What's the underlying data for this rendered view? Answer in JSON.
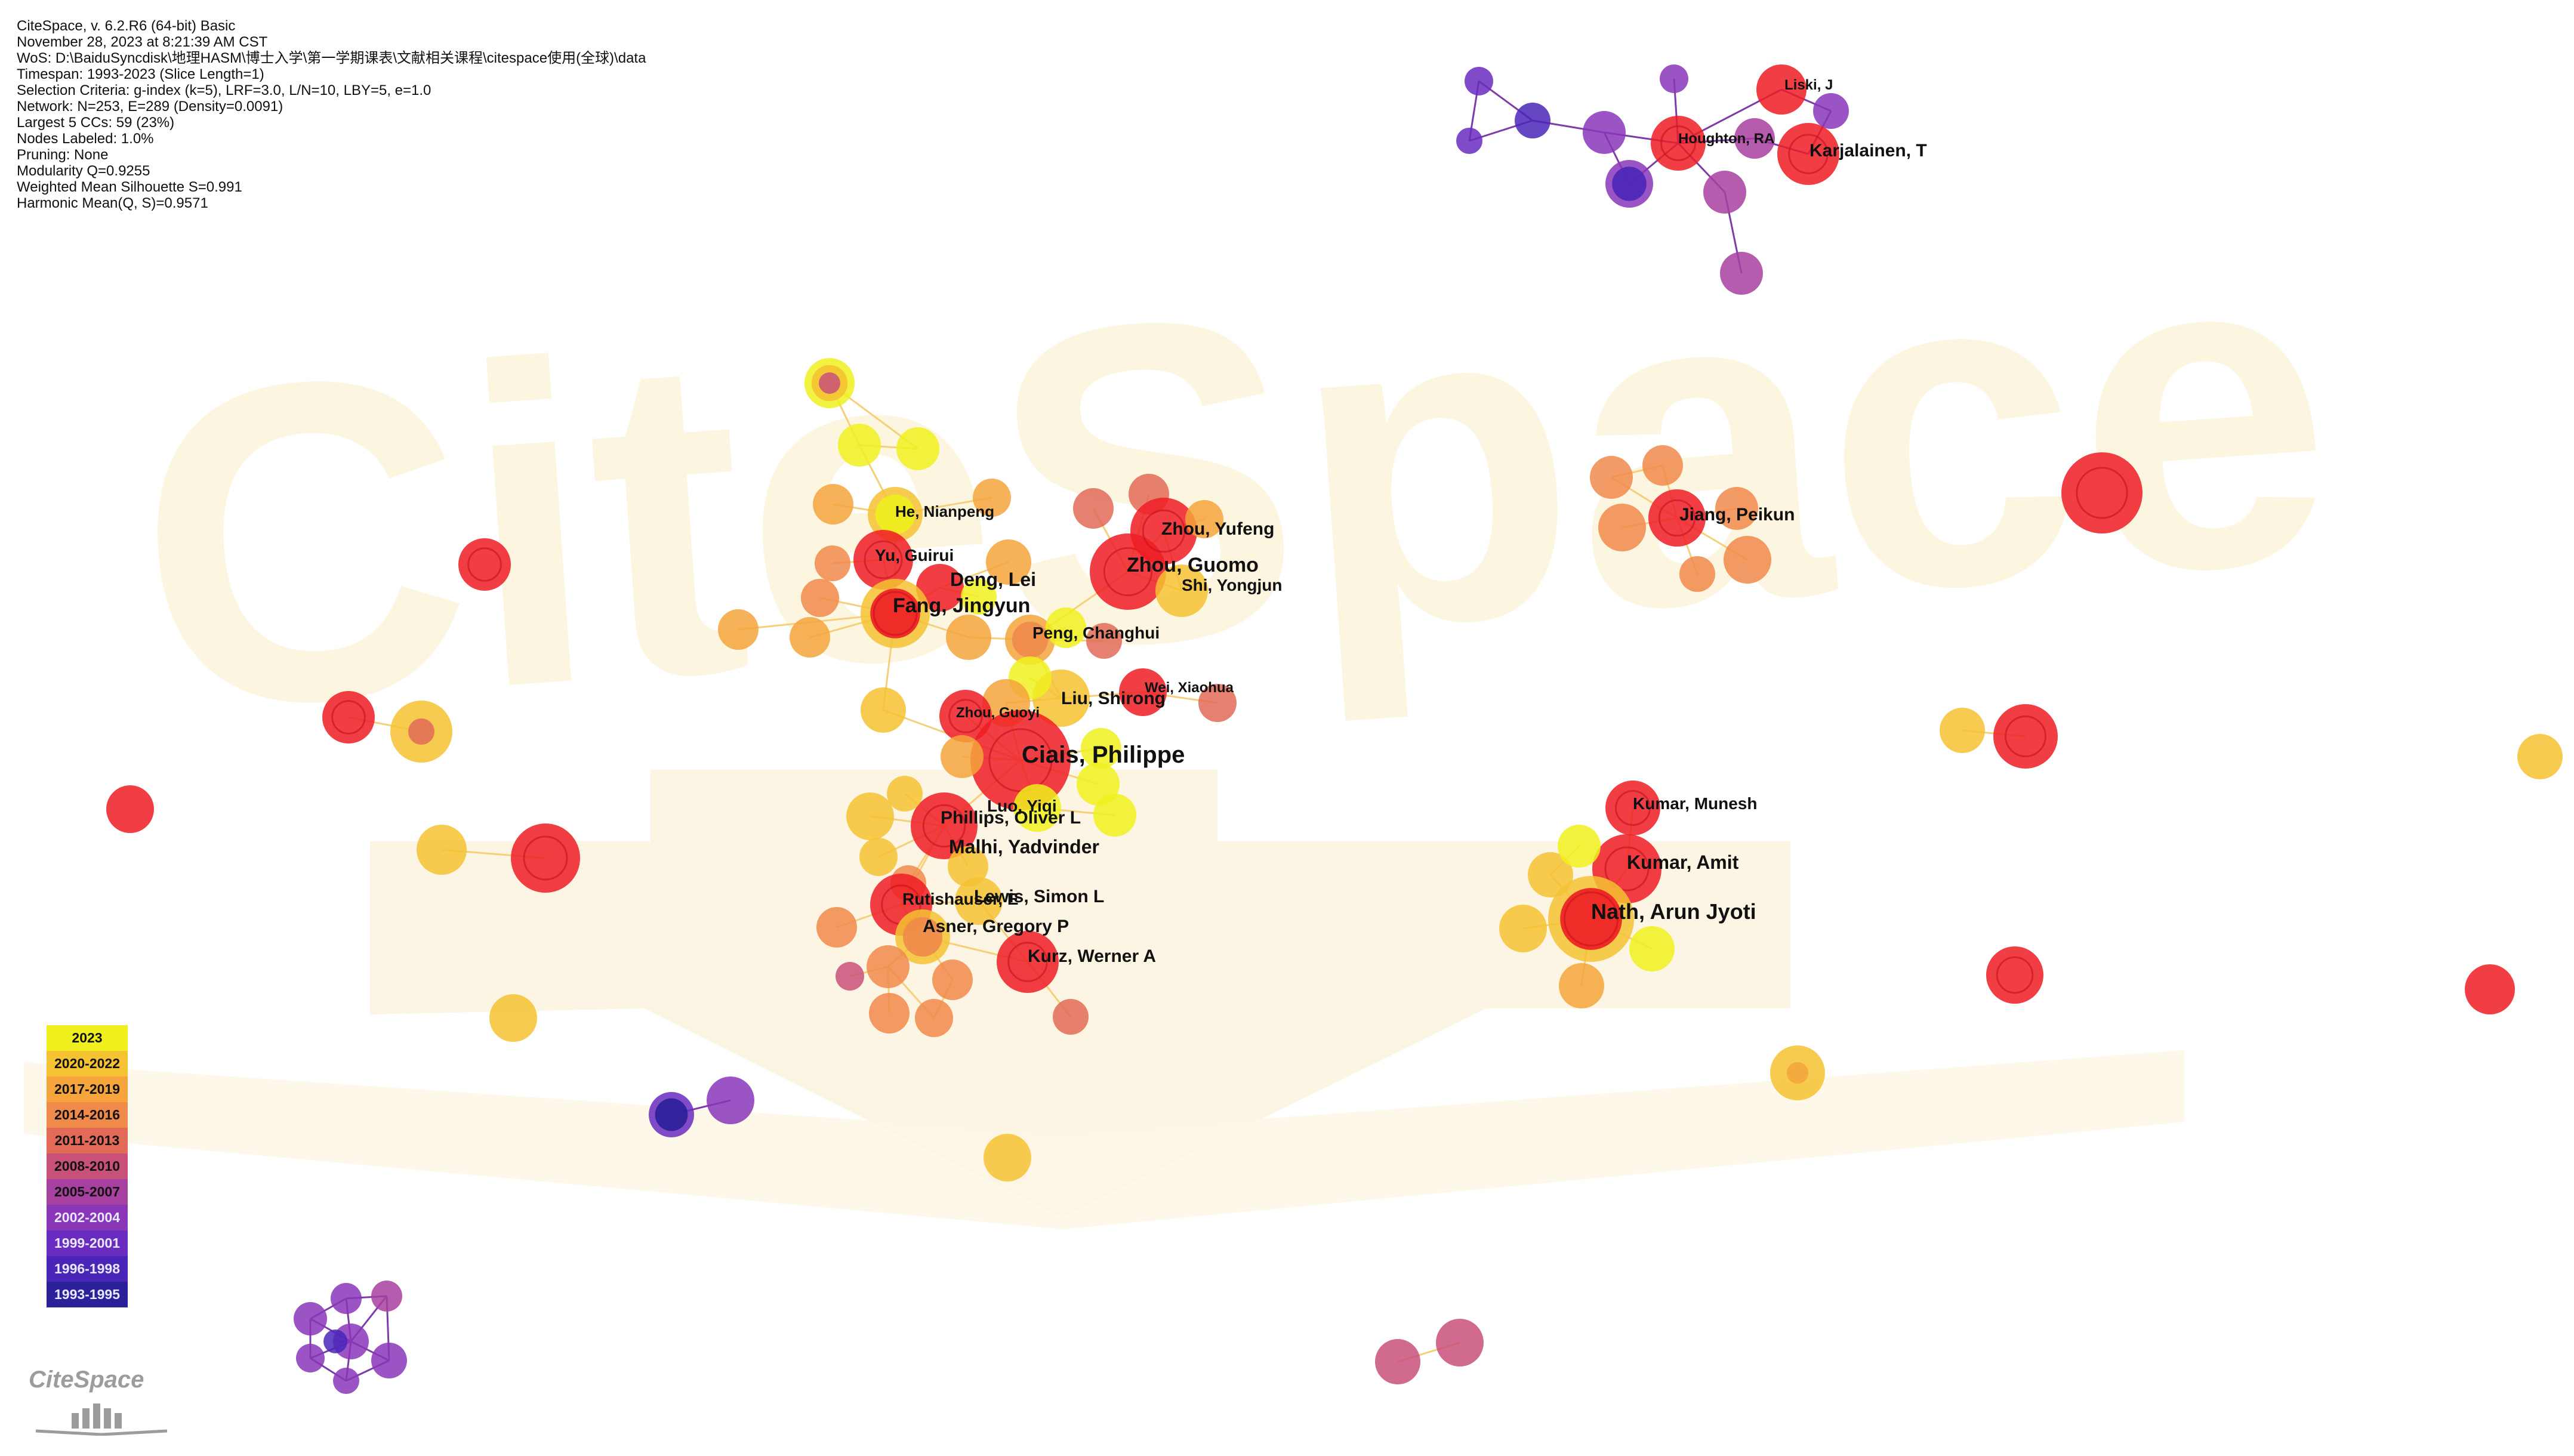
{
  "header": {
    "lines": [
      "CiteSpace, v. 6.2.R6 (64-bit) Basic",
      "November 28, 2023 at 8:21:39 AM CST",
      "WoS: D:\\BaiduSyncdisk\\地理HASM\\博士入学\\第一学期课表\\文献相关课程\\citespace使用(全球)\\data",
      "Timespan: 1993-2023 (Slice Length=1)",
      "Selection Criteria: g-index (k=5), LRF=3.0, L/N=10, LBY=5, e=1.0",
      "Network: N=253, E=289 (Density=0.0091)",
      "Largest 5 CCs: 59 (23%)",
      "Nodes Labeled: 1.0%",
      "Pruning: None",
      "Modularity Q=0.9255",
      "Weighted Mean Silhouette S=0.991",
      "Harmonic Mean(Q, S)=0.9571"
    ]
  },
  "watermark": {
    "text": "CiteSpace"
  },
  "legend": {
    "items": [
      {
        "label": "2023",
        "color": "#f0f01e"
      },
      {
        "label": "2020-2022",
        "color": "#f5c231"
      },
      {
        "label": "2017-2019",
        "color": "#f5a53c"
      },
      {
        "label": "2014-2016",
        "color": "#f08a4b"
      },
      {
        "label": "2011-2013",
        "color": "#e26a57"
      },
      {
        "label": "2008-2010",
        "color": "#c8507a"
      },
      {
        "label": "2005-2007",
        "color": "#a840a0"
      },
      {
        "label": "2002-2004",
        "color": "#8a36b8"
      },
      {
        "label": "1999-2001",
        "color": "#6a2cc0"
      },
      {
        "label": "1996-1998",
        "color": "#4a26b8"
      },
      {
        "label": "1993-1995",
        "color": "#2a2098"
      }
    ]
  },
  "logo": {
    "text": "CiteSpace"
  },
  "colors": {
    "red": "#ee1c25",
    "edge": "#f6cf7a",
    "purple_edge": "#7d3aa8"
  },
  "labels": [
    {
      "id": "ciais",
      "text": "Ciais, Philippe"
    },
    {
      "id": "zhou_guomo",
      "text": "Zhou, Guomo"
    },
    {
      "id": "zhou_yufeng",
      "text": "Zhou, Yufeng"
    },
    {
      "id": "shi_yongjun",
      "text": "Shi, Yongjun"
    },
    {
      "id": "fang_jingyun",
      "text": "Fang, Jingyun"
    },
    {
      "id": "deng_lei",
      "text": "Deng, Lei"
    },
    {
      "id": "yu_guirui",
      "text": "Yu, Guirui"
    },
    {
      "id": "he_nianpeng",
      "text": "He, Nianpeng"
    },
    {
      "id": "peng_changhui",
      "text": "Peng, Changhui"
    },
    {
      "id": "wei_xiaohua",
      "text": "Wei, Xiaohua"
    },
    {
      "id": "liu_shirong",
      "text": "Liu, Shirong"
    },
    {
      "id": "zhou_guoyi",
      "text": "Zhou, Guoyi"
    },
    {
      "id": "luo_yiqi",
      "text": "Luo, Yiqi"
    },
    {
      "id": "phillips",
      "text": "Phillips, Oliver L"
    },
    {
      "id": "malhi",
      "text": "Malhi, Yadvinder"
    },
    {
      "id": "rutishauser",
      "text": "Rutishauser, E"
    },
    {
      "id": "lewis",
      "text": "Lewis, Simon L"
    },
    {
      "id": "asner",
      "text": "Asner, Gregory P"
    },
    {
      "id": "kurz",
      "text": "Kurz, Werner A"
    },
    {
      "id": "karjalainen",
      "text": "Karjalainen, T"
    },
    {
      "id": "houghton",
      "text": "Houghton, RA"
    },
    {
      "id": "liski",
      "text": "Liski, J"
    },
    {
      "id": "jiang_peikun",
      "text": "Jiang, Peikun"
    },
    {
      "id": "kumar_munesh",
      "text": "Kumar, Munesh"
    },
    {
      "id": "kumar_amit",
      "text": "Kumar, Amit"
    },
    {
      "id": "nath",
      "text": "Nath, Arun Jyoti"
    }
  ]
}
